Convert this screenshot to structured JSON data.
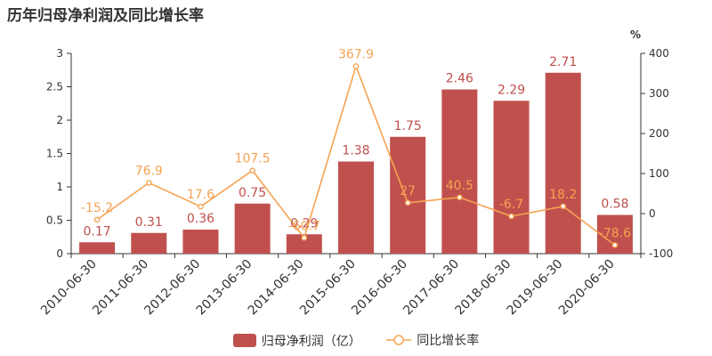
{
  "title": "历年归母净利润及同比增长率",
  "colors": {
    "bar": "#c0504d",
    "line": "#f5a353",
    "axis": "#333333",
    "point_fill": "#ffffff"
  },
  "chart_data": {
    "type": "bar",
    "categories": [
      "2010-06-30",
      "2011-06-30",
      "2012-06-30",
      "2013-06-30",
      "2014-06-30",
      "2015-06-30",
      "2016-06-30",
      "2017-06-30",
      "2018-06-30",
      "2019-06-30",
      "2020-06-30"
    ],
    "series": [
      {
        "name": "归母净利润（亿）",
        "type": "bar",
        "axis": "left",
        "values": [
          0.17,
          0.31,
          0.36,
          0.75,
          0.29,
          1.38,
          1.75,
          2.46,
          2.29,
          2.71,
          0.58
        ]
      },
      {
        "name": "同比增长率",
        "type": "line",
        "axis": "right",
        "values": [
          -15.2,
          76.9,
          17.6,
          107.5,
          -60.7,
          367.9,
          27,
          40.5,
          -6.7,
          18.2,
          -78.6
        ]
      }
    ],
    "bar_labels": [
      "0.17",
      "0.31",
      "0.36",
      "0.75",
      "0.29",
      "1.38",
      "1.75",
      "2.46",
      "2.29",
      "2.71",
      "0.58"
    ],
    "line_labels": [
      "-15.2",
      "76.9",
      "17.6",
      "107.5",
      "-60.7",
      "367.9",
      "27",
      "40.5",
      "-6.7",
      "18.2",
      "-78.6"
    ],
    "y_left": {
      "min": 0,
      "max": 3,
      "ticks": [
        "0",
        "0.5",
        "1",
        "1.5",
        "2",
        "2.5",
        "3"
      ]
    },
    "y_right": {
      "min": -100,
      "max": 400,
      "ticks": [
        "-100",
        "0",
        "100",
        "200",
        "300",
        "400"
      ],
      "unit": "%"
    },
    "grid": false,
    "legend_position": "bottom"
  }
}
